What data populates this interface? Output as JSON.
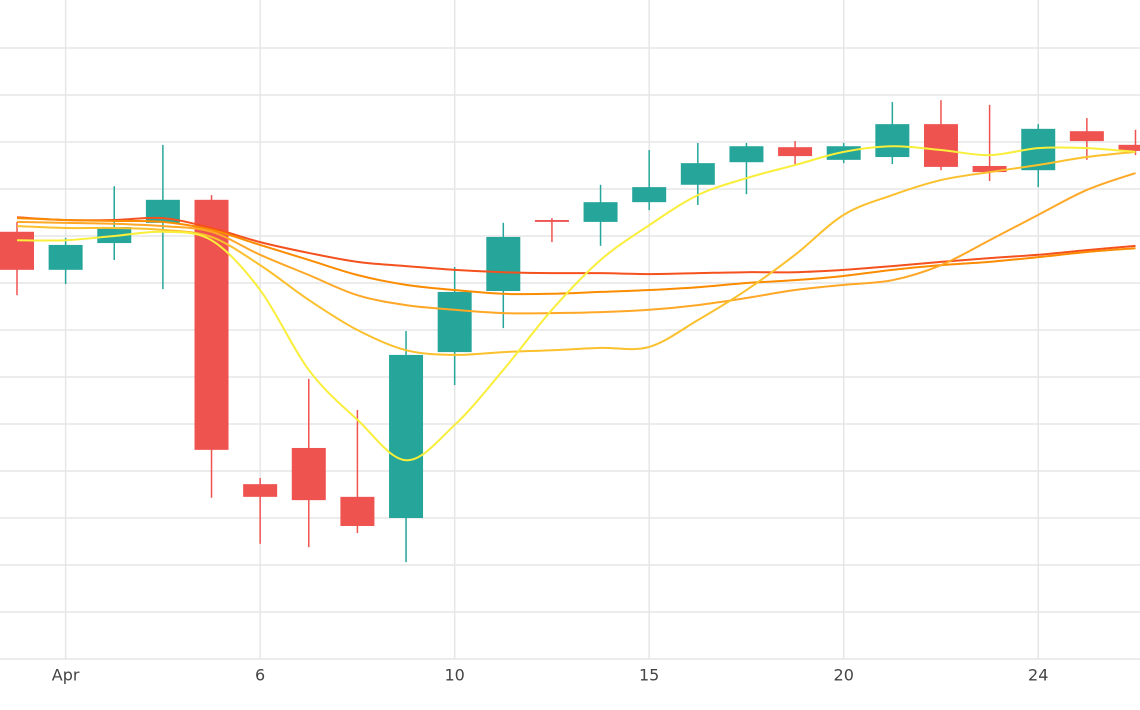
{
  "chart_data": {
    "type": "candlestick",
    "categories": [
      null,
      "Apr",
      null,
      null,
      null,
      "6",
      null,
      null,
      null,
      "10",
      null,
      null,
      null,
      "15",
      null,
      null,
      null,
      "20",
      null,
      null,
      null,
      "24",
      null,
      null
    ],
    "open": [
      9.09,
      8.28,
      8.85,
      9.28,
      9.77,
      3.72,
      4.49,
      3.45,
      3.0,
      6.53,
      7.83,
      9.34,
      9.3,
      9.72,
      10.09,
      10.57,
      10.89,
      10.62,
      10.68,
      11.38,
      10.49,
      10.4,
      11.23,
      10.94
    ],
    "high": [
      9.3,
      8.96,
      10.06,
      10.94,
      9.87,
      3.85,
      5.96,
      5.3,
      6.98,
      8.34,
      9.28,
      9.38,
      10.09,
      10.83,
      10.98,
      10.98,
      11.02,
      10.98,
      11.85,
      11.89,
      11.79,
      11.38,
      11.51,
      11.26
    ],
    "low": [
      7.74,
      7.98,
      8.49,
      7.87,
      3.43,
      2.45,
      2.38,
      2.68,
      2.06,
      5.83,
      7.04,
      8.87,
      8.79,
      9.55,
      9.66,
      9.89,
      10.49,
      10.55,
      10.53,
      10.4,
      10.17,
      10.04,
      10.62,
      10.72
    ],
    "close": [
      8.28,
      8.81,
      9.19,
      9.77,
      4.45,
      3.45,
      3.38,
      2.83,
      6.47,
      7.81,
      8.98,
      9.3,
      9.72,
      10.04,
      10.55,
      10.91,
      10.7,
      10.91,
      11.38,
      10.47,
      10.36,
      11.28,
      11.02,
      10.81
    ],
    "up_color": "#26a69a",
    "down_color": "#ef5350",
    "lines": [
      {
        "color": "#f4511e",
        "values": [
          9.4,
          9.34,
          9.34,
          9.38,
          9.17,
          8.87,
          8.64,
          8.45,
          8.36,
          8.28,
          8.23,
          8.21,
          8.21,
          8.19,
          8.21,
          8.23,
          8.23,
          8.28,
          8.36,
          8.45,
          8.53,
          8.6,
          8.7,
          8.79
        ]
      },
      {
        "color": "#fb8c00",
        "values": [
          9.38,
          9.34,
          9.32,
          9.3,
          9.13,
          8.81,
          8.49,
          8.17,
          7.96,
          7.85,
          7.77,
          7.77,
          7.81,
          7.85,
          7.91,
          8.0,
          8.06,
          8.15,
          8.28,
          8.38,
          8.45,
          8.55,
          8.66,
          8.74
        ]
      },
      {
        "color": "#ffa726",
        "values": [
          9.3,
          9.28,
          9.26,
          9.21,
          9.09,
          8.6,
          8.17,
          7.74,
          7.53,
          7.43,
          7.36,
          7.36,
          7.38,
          7.43,
          7.53,
          7.68,
          7.85,
          7.96,
          8.06,
          8.38,
          8.91,
          9.45,
          9.98,
          10.34
        ]
      },
      {
        "color": "#fbc02d",
        "values": [
          9.21,
          9.17,
          9.17,
          9.13,
          8.98,
          8.38,
          7.64,
          7.0,
          6.57,
          6.47,
          6.53,
          6.57,
          6.62,
          6.64,
          7.21,
          7.85,
          8.6,
          9.45,
          9.87,
          10.19,
          10.36,
          10.51,
          10.68,
          10.79
        ]
      },
      {
        "color": "#f9ee3a",
        "values": [
          8.91,
          8.91,
          9.0,
          9.09,
          8.91,
          7.85,
          6.15,
          5.09,
          4.23,
          4.98,
          6.15,
          7.43,
          8.49,
          9.23,
          9.87,
          10.23,
          10.51,
          10.79,
          10.91,
          10.83,
          10.72,
          10.87,
          10.87,
          10.79
        ]
      }
    ],
    "ylim": [
      0,
      14
    ],
    "yticks": [
      1,
      2,
      3,
      4,
      5,
      6,
      7,
      8,
      9,
      10,
      11,
      12,
      13
    ],
    "grid": true
  }
}
